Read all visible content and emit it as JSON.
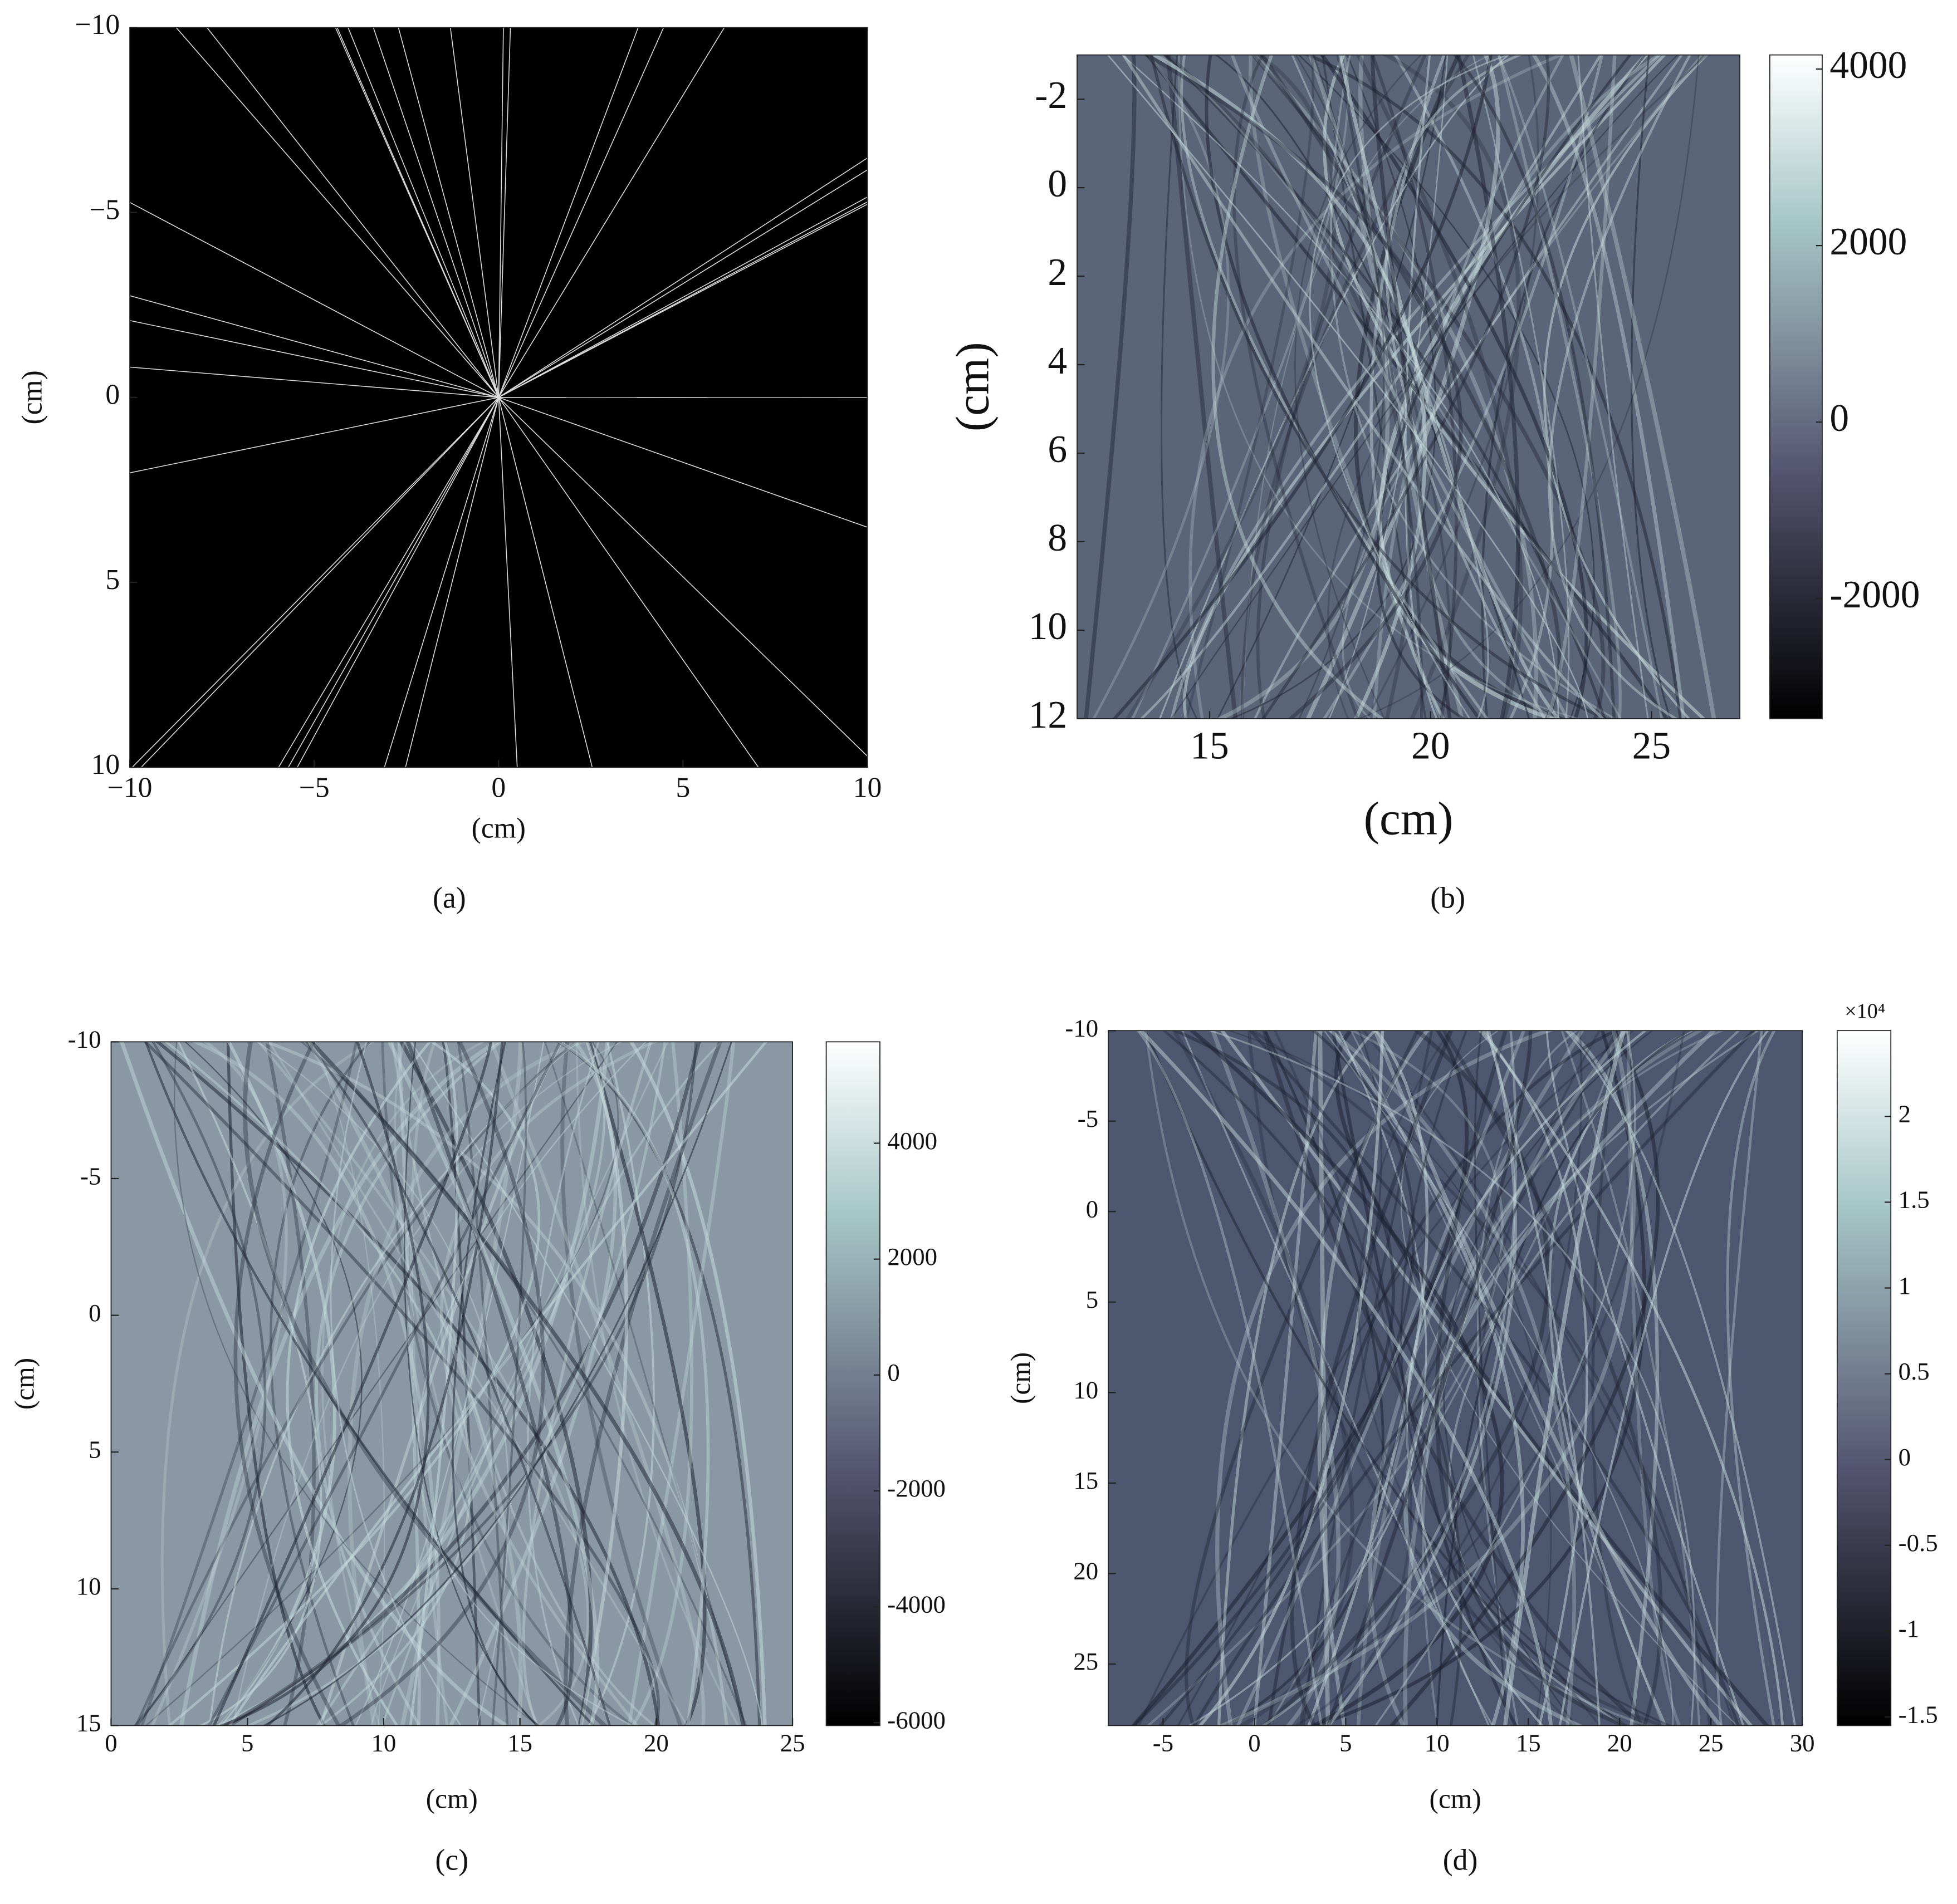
{
  "chart_data": [
    {
      "type": "image",
      "caption": "(a)",
      "xlabel": "(cm)",
      "ylabel": "(cm)",
      "colormap": "gray",
      "xlim": [
        -10,
        10
      ],
      "ylim": [
        -10,
        10
      ],
      "y_reversed": true,
      "xticks": [
        {
          "value": -10,
          "label": "−10"
        },
        {
          "value": -5,
          "label": "−5"
        },
        0,
        5,
        10
      ],
      "yticks": [
        {
          "value": -10,
          "label": "−10"
        },
        {
          "value": -5,
          "label": "−5"
        },
        0,
        5,
        10
      ]
    },
    {
      "type": "image",
      "caption": "(b)",
      "xlabel": "(cm)",
      "ylabel": "(cm)",
      "colormap": "bone",
      "xlim": [
        12,
        27
      ],
      "ylim": [
        -3,
        12
      ],
      "y_reversed": true,
      "xticks": [
        15,
        20,
        25
      ],
      "yticks": [
        -2,
        0,
        2,
        4,
        6,
        8,
        10,
        12
      ],
      "clim": [
        -3360,
        4160
      ],
      "cticks": [
        -2000,
        0,
        2000,
        4000
      ]
    },
    {
      "type": "image",
      "caption": "(c)",
      "xlabel": "(cm)",
      "ylabel": "(cm)",
      "colormap": "bone",
      "xlim": [
        0,
        25
      ],
      "ylim": [
        -10,
        15
      ],
      "y_reversed": true,
      "xticks": [
        0,
        5,
        10,
        15,
        20,
        25
      ],
      "yticks": [
        -10,
        -5,
        0,
        5,
        10,
        15
      ],
      "clim": [
        -6050,
        5750
      ],
      "cticks": [
        -6000,
        -4000,
        -2000,
        0,
        2000,
        4000
      ]
    },
    {
      "type": "image",
      "caption": "(d)",
      "xlabel": "(cm)",
      "ylabel": "(cm)",
      "colormap": "bone",
      "xlim": [
        -8,
        30
      ],
      "ylim": [
        -10,
        28.4
      ],
      "y_reversed": true,
      "xticks": [
        -5,
        0,
        5,
        10,
        15,
        20,
        25,
        30
      ],
      "yticks": [
        -10,
        -5,
        0,
        5,
        10,
        15,
        20,
        25
      ],
      "clim": [
        -1.55,
        2.5
      ],
      "cticks": [
        -1.5,
        -1,
        -0.5,
        0,
        0.5,
        1,
        1.5,
        2
      ],
      "colorbar_scale_label": "×10⁴"
    }
  ]
}
